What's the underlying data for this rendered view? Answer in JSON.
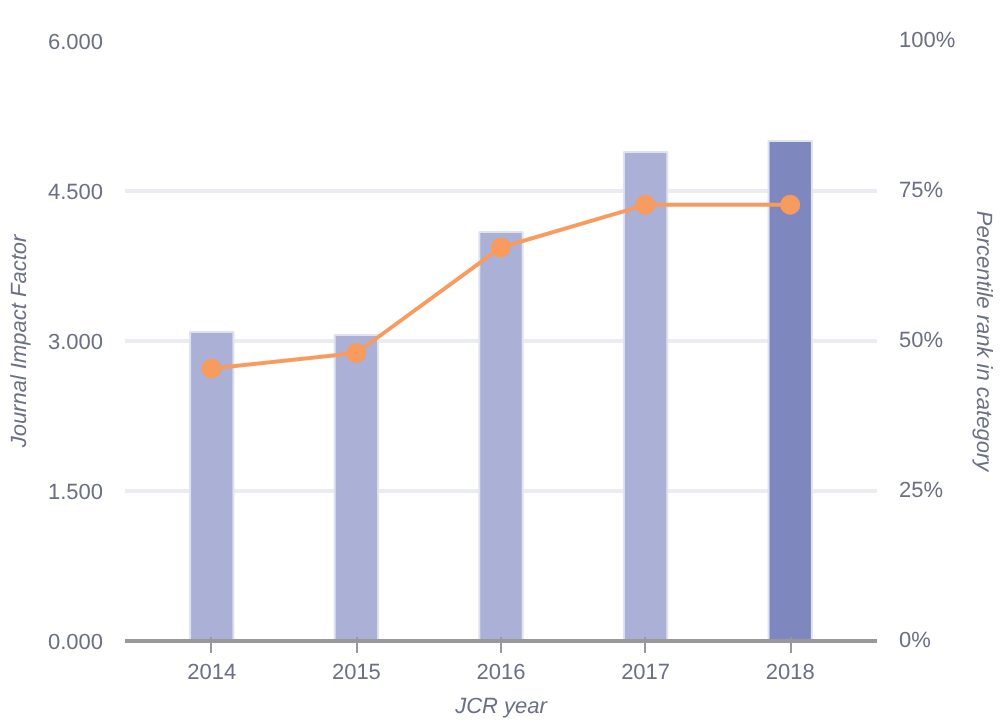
{
  "chart_data": {
    "type": "bar",
    "categories": [
      "2014",
      "2015",
      "2016",
      "2017",
      "2018"
    ],
    "xlabel": "JCR year",
    "ylabel": "Journal Impact Factor",
    "y2label": "Percentile rank in category",
    "series": [
      {
        "colors": [
          "#aab0d6",
          "#aab0d6",
          "#aab0d6",
          "#aab0d6",
          "#7f87bf"
        ],
        "values": [
          3.09,
          3.06,
          4.09,
          4.89,
          5.0
        ]
      },
      {
        "type": "line",
        "axis": "y2",
        "color": "#f79b5e",
        "values": [
          45.4,
          48.0,
          65.6,
          72.7,
          72.7
        ]
      }
    ],
    "ylim": [
      0,
      6
    ],
    "yticks": [
      {
        "value": 0,
        "label": "0.000"
      },
      {
        "value": 1.5,
        "label": "1.500"
      },
      {
        "value": 3,
        "label": "3.000"
      },
      {
        "value": 4.5,
        "label": "4.500"
      },
      {
        "value": 6,
        "label": "6.000"
      }
    ],
    "y2lim": [
      0,
      100
    ],
    "y2ticks": [
      {
        "value": 0,
        "label": "0%"
      },
      {
        "value": 25,
        "label": "25%"
      },
      {
        "value": 50,
        "label": "50%"
      },
      {
        "value": 75,
        "label": "75%"
      },
      {
        "value": 100,
        "label": "100%"
      }
    ],
    "grid": "y",
    "marker": "circle",
    "line_style": "solid"
  }
}
